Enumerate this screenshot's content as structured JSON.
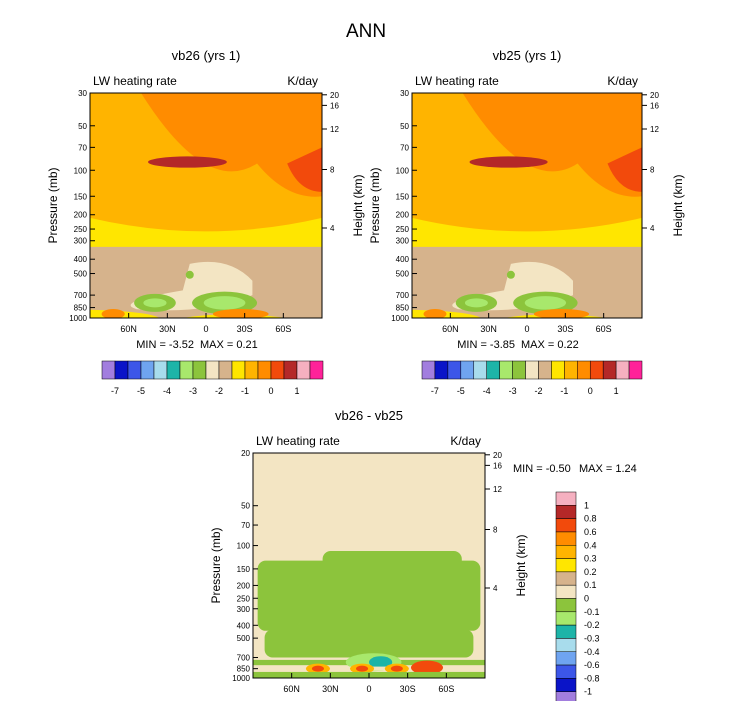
{
  "figure_title": "ANN",
  "chart_data": [
    {
      "type": "heatmap",
      "title": "vb26 (yrs 1)",
      "left_label": "LW heating rate",
      "right_label": "K/day",
      "xlabel": "",
      "ylabel": "Pressure (mb)",
      "ylabel_right": "Height (km)",
      "x_ticks": [
        "60N",
        "30N",
        "0",
        "30S",
        "60S"
      ],
      "y_ticks": [
        30,
        50,
        70,
        100,
        150,
        200,
        250,
        300,
        400,
        500,
        700,
        850,
        1000
      ],
      "height_ticks": [
        20,
        16,
        12,
        8,
        4
      ],
      "min_label": "MIN =  -3.52",
      "max_label": "MAX =   0.21",
      "colorbar_levels": [
        "-7",
        "-5",
        "-4",
        "-3",
        "-2",
        "-1",
        "0",
        "1"
      ]
    },
    {
      "type": "heatmap",
      "title": "vb25 (yrs 1)",
      "left_label": "LW heating rate",
      "right_label": "K/day",
      "xlabel": "",
      "ylabel": "Pressure (mb)",
      "ylabel_right": "Height (km)",
      "x_ticks": [
        "60N",
        "30N",
        "0",
        "30S",
        "60S"
      ],
      "y_ticks": [
        30,
        50,
        70,
        100,
        150,
        200,
        250,
        300,
        400,
        500,
        700,
        850,
        1000
      ],
      "height_ticks": [
        20,
        16,
        12,
        8,
        4
      ],
      "min_label": "MIN =  -3.85",
      "max_label": "MAX =   0.22",
      "colorbar_levels": [
        "-7",
        "-5",
        "-4",
        "-3",
        "-2",
        "-1",
        "0",
        "1"
      ]
    },
    {
      "type": "heatmap",
      "title": "vb26 - vb25",
      "left_label": "LW heating rate",
      "right_label": "K/day",
      "xlabel": "",
      "ylabel": "Pressure (mb)",
      "ylabel_right": "Height (km)",
      "x_ticks": [
        "60N",
        "30N",
        "0",
        "30S",
        "60S"
      ],
      "y_ticks": [
        20,
        50,
        70,
        100,
        150,
        200,
        250,
        300,
        400,
        500,
        700,
        850,
        1000
      ],
      "height_ticks": [
        20,
        16,
        12,
        8,
        4
      ],
      "min_label": "MIN =  -0.50",
      "max_label": "MAX =   1.24",
      "colorbar_levels": [
        "1",
        "0.8",
        "0.6",
        "0.4",
        "0.3",
        "0.2",
        "0.1",
        "0",
        "-0.1",
        "-0.2",
        "-0.3",
        "-0.4",
        "-0.6",
        "-0.8",
        "-1"
      ]
    }
  ],
  "palette_main": [
    "#a27ede",
    "#0a14c8",
    "#3c56e8",
    "#6fa4f0",
    "#a8dcec",
    "#1db4a8",
    "#a8e86c",
    "#8cc43c",
    "#f3e5c3",
    "#d6b38c",
    "#ffe600",
    "#ffb400",
    "#ff8c00",
    "#f24a0c",
    "#b42828",
    "#f5b0c0",
    "#ff2299"
  ],
  "palette_diff": [
    "#a27ede",
    "#0a14c8",
    "#3c56e8",
    "#6fa4f0",
    "#a8dcec",
    "#1db4a8",
    "#a8e86c",
    "#8cc43c",
    "#f3e5c3",
    "#d6b38c",
    "#ffe600",
    "#ffb400",
    "#ff8c00",
    "#f24a0c",
    "#b42828",
    "#f5b0c0",
    "#ff2299"
  ]
}
